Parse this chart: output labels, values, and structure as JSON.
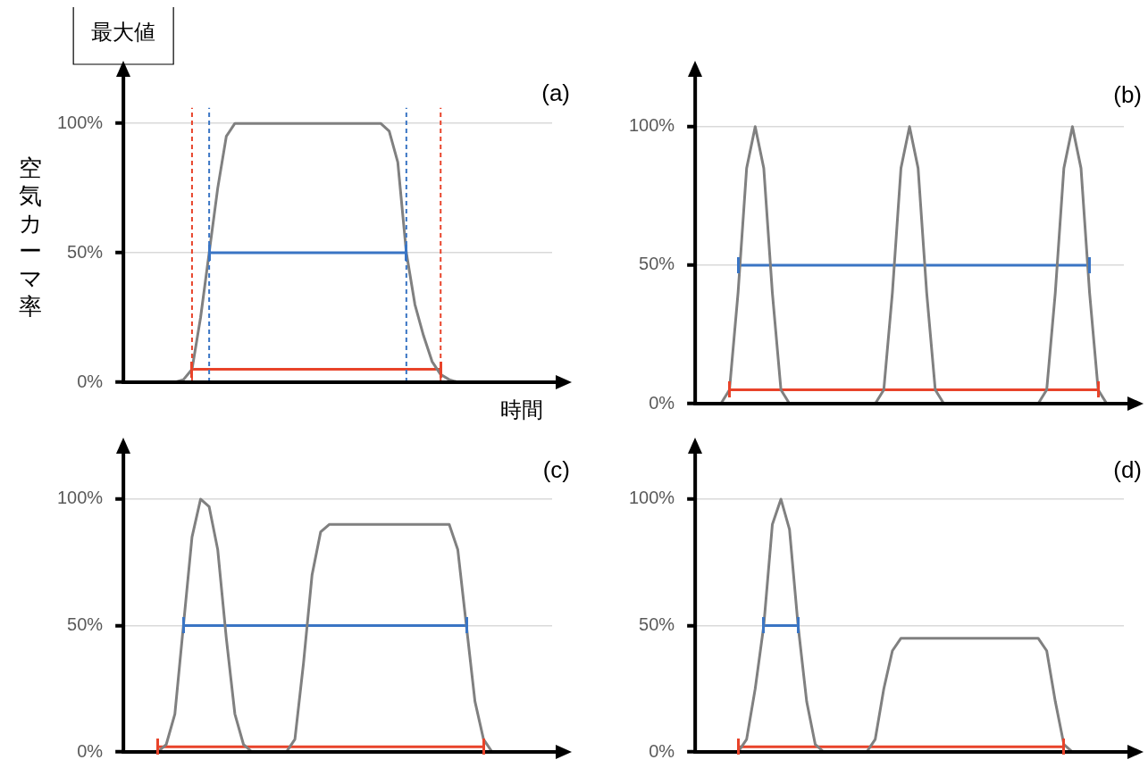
{
  "chart_data": [
    {
      "type": "line",
      "title": "最大値",
      "ylabel": "空気カーマ率",
      "xlabel": "時間",
      "annotations": [
        "(a)"
      ],
      "categories": [
        null,
        null,
        null,
        null,
        null,
        null,
        null,
        null,
        null,
        null,
        null,
        null,
        null,
        null,
        null,
        null,
        null,
        null,
        null,
        null,
        null,
        null,
        null,
        null,
        null,
        null,
        null,
        null,
        null,
        null,
        null,
        null,
        null,
        null,
        null,
        null,
        null,
        null,
        null,
        null,
        null,
        null,
        null,
        null,
        null,
        null,
        null,
        null,
        null,
        null,
        null
      ],
      "ylim": [
        0,
        118
      ],
      "yticks": [
        {
          "value": 0,
          "label": "0%"
        },
        {
          "value": 50,
          "label": "50%"
        },
        {
          "value": 100,
          "label": "100%"
        }
      ],
      "grid": "y",
      "tick_labels": "y",
      "series": [
        {
          "color": "#808080",
          "values": [
            0,
            0,
            0,
            0,
            0,
            0,
            0,
            1,
            5,
            25,
            50,
            75,
            95,
            100,
            100,
            100,
            100,
            100,
            100,
            100,
            100,
            100,
            100,
            100,
            100,
            100,
            100,
            100,
            100,
            100,
            100,
            97,
            85,
            50,
            30,
            18,
            8,
            3,
            1,
            0,
            0,
            0,
            0,
            0,
            0,
            0,
            0,
            0,
            0,
            0,
            0
          ]
        },
        {
          "color": "#3a75c4",
          "values": [
            null,
            null,
            null,
            null,
            null,
            null,
            null,
            null,
            null,
            null,
            50,
            50,
            50,
            50,
            50,
            50,
            50,
            50,
            50,
            50,
            50,
            50,
            50,
            50,
            50,
            50,
            50,
            50,
            50,
            50,
            50,
            50,
            50,
            50,
            null,
            null,
            null,
            null,
            null,
            null,
            null,
            null,
            null,
            null,
            null,
            null,
            null,
            null,
            null,
            null,
            null
          ]
        },
        {
          "color": "#e8432a",
          "values": [
            null,
            null,
            null,
            null,
            null,
            null,
            null,
            null,
            5,
            5,
            5,
            5,
            5,
            5,
            5,
            5,
            5,
            5,
            5,
            5,
            5,
            5,
            5,
            5,
            5,
            5,
            5,
            5,
            5,
            5,
            5,
            5,
            5,
            5,
            5,
            5,
            5,
            5,
            null,
            null,
            null,
            null,
            null,
            null,
            null,
            null,
            null,
            null,
            null,
            null,
            null
          ]
        }
      ]
    },
    {
      "type": "line",
      "annotations": [
        "(b)"
      ],
      "categories": [
        null,
        null,
        null,
        null,
        null,
        null,
        null,
        null,
        null,
        null,
        null,
        null,
        null,
        null,
        null,
        null,
        null,
        null,
        null,
        null,
        null,
        null,
        null,
        null,
        null,
        null,
        null,
        null,
        null,
        null,
        null,
        null,
        null,
        null,
        null,
        null,
        null,
        null,
        null,
        null,
        null,
        null,
        null,
        null,
        null,
        null,
        null,
        null,
        null,
        null,
        null
      ],
      "ylim": [
        0,
        118
      ],
      "yticks": [
        {
          "value": 0,
          "label": "0%"
        },
        {
          "value": 50,
          "label": "50%"
        },
        {
          "value": 100,
          "label": "100%"
        }
      ],
      "grid": "y",
      "tick_labels": "y",
      "series": [
        {
          "color": "#808080",
          "values": [
            0,
            0,
            0,
            0,
            5,
            40,
            85,
            100,
            85,
            40,
            5,
            0,
            0,
            0,
            0,
            0,
            0,
            0,
            0,
            0,
            0,
            0,
            5,
            40,
            85,
            100,
            85,
            40,
            5,
            0,
            0,
            0,
            0,
            0,
            0,
            0,
            0,
            0,
            0,
            0,
            0,
            5,
            40,
            85,
            100,
            85,
            40,
            5,
            0,
            0,
            0
          ]
        },
        {
          "color": "#3a75c4",
          "values": [
            null,
            null,
            null,
            null,
            null,
            50,
            50,
            50,
            50,
            50,
            50,
            50,
            50,
            50,
            50,
            50,
            50,
            50,
            50,
            50,
            50,
            50,
            50,
            50,
            50,
            50,
            50,
            50,
            50,
            50,
            50,
            50,
            50,
            50,
            50,
            50,
            50,
            50,
            50,
            50,
            50,
            50,
            50,
            50,
            50,
            50,
            50,
            null,
            null,
            null,
            null
          ]
        },
        {
          "color": "#e8432a",
          "values": [
            null,
            null,
            null,
            null,
            5,
            5,
            5,
            5,
            5,
            5,
            5,
            5,
            5,
            5,
            5,
            5,
            5,
            5,
            5,
            5,
            5,
            5,
            5,
            5,
            5,
            5,
            5,
            5,
            5,
            5,
            5,
            5,
            5,
            5,
            5,
            5,
            5,
            5,
            5,
            5,
            5,
            5,
            5,
            5,
            5,
            5,
            5,
            5,
            null,
            null,
            null
          ]
        }
      ]
    },
    {
      "type": "line",
      "annotations": [
        "(c)"
      ],
      "categories": [
        null,
        null,
        null,
        null,
        null,
        null,
        null,
        null,
        null,
        null,
        null,
        null,
        null,
        null,
        null,
        null,
        null,
        null,
        null,
        null,
        null,
        null,
        null,
        null,
        null,
        null,
        null,
        null,
        null,
        null,
        null,
        null,
        null,
        null,
        null,
        null,
        null,
        null,
        null,
        null,
        null,
        null,
        null,
        null,
        null,
        null,
        null,
        null,
        null,
        null,
        null
      ],
      "ylim": [
        0,
        118
      ],
      "yticks": [
        {
          "value": 0,
          "label": "0%"
        },
        {
          "value": 50,
          "label": "50%"
        },
        {
          "value": 100,
          "label": "100%"
        }
      ],
      "grid": "y",
      "tick_labels": "y",
      "series": [
        {
          "color": "#808080",
          "values": [
            0,
            0,
            0,
            0,
            0,
            3,
            15,
            50,
            85,
            100,
            97,
            80,
            45,
            15,
            3,
            0,
            0,
            0,
            0,
            0,
            5,
            35,
            70,
            87,
            90,
            90,
            90,
            90,
            90,
            90,
            90,
            90,
            90,
            90,
            90,
            90,
            90,
            90,
            90,
            80,
            50,
            20,
            5,
            0,
            0,
            0,
            0,
            0,
            0,
            0,
            0
          ]
        },
        {
          "color": "#3a75c4",
          "values": [
            null,
            null,
            null,
            null,
            null,
            null,
            null,
            50,
            50,
            50,
            50,
            50,
            50,
            50,
            50,
            50,
            50,
            50,
            50,
            50,
            50,
            50,
            50,
            50,
            50,
            50,
            50,
            50,
            50,
            50,
            50,
            50,
            50,
            50,
            50,
            50,
            50,
            50,
            50,
            50,
            50,
            null,
            null,
            null,
            null,
            null,
            null,
            null,
            null,
            null,
            null
          ]
        },
        {
          "color": "#e8432a",
          "values": [
            null,
            null,
            null,
            null,
            2,
            2,
            2,
            2,
            2,
            2,
            2,
            2,
            2,
            2,
            2,
            2,
            2,
            2,
            2,
            2,
            2,
            2,
            2,
            2,
            2,
            2,
            2,
            2,
            2,
            2,
            2,
            2,
            2,
            2,
            2,
            2,
            2,
            2,
            2,
            2,
            2,
            2,
            2,
            null,
            null,
            null,
            null,
            null,
            null,
            null,
            null
          ]
        }
      ]
    },
    {
      "type": "line",
      "annotations": [
        "(d)"
      ],
      "categories": [
        null,
        null,
        null,
        null,
        null,
        null,
        null,
        null,
        null,
        null,
        null,
        null,
        null,
        null,
        null,
        null,
        null,
        null,
        null,
        null,
        null,
        null,
        null,
        null,
        null,
        null,
        null,
        null,
        null,
        null,
        null,
        null,
        null,
        null,
        null,
        null,
        null,
        null,
        null,
        null,
        null,
        null,
        null,
        null,
        null,
        null,
        null,
        null,
        null,
        null,
        null
      ],
      "ylim": [
        0,
        118
      ],
      "yticks": [
        {
          "value": 0,
          "label": "0%"
        },
        {
          "value": 50,
          "label": "50%"
        },
        {
          "value": 100,
          "label": "100%"
        }
      ],
      "grid": "y",
      "tick_labels": "y",
      "series": [
        {
          "color": "#808080",
          "values": [
            0,
            0,
            0,
            0,
            0,
            0,
            5,
            25,
            50,
            90,
            100,
            88,
            50,
            20,
            3,
            0,
            0,
            0,
            0,
            0,
            0,
            5,
            25,
            40,
            45,
            45,
            45,
            45,
            45,
            45,
            45,
            45,
            45,
            45,
            45,
            45,
            45,
            45,
            45,
            45,
            45,
            40,
            20,
            3,
            0,
            0,
            0,
            0,
            0,
            0,
            0
          ]
        },
        {
          "color": "#3a75c4",
          "values": [
            null,
            null,
            null,
            null,
            null,
            null,
            null,
            null,
            50,
            50,
            50,
            50,
            50,
            null,
            null,
            null,
            null,
            null,
            null,
            null,
            null,
            null,
            null,
            null,
            null,
            null,
            null,
            null,
            null,
            null,
            null,
            null,
            null,
            null,
            null,
            null,
            null,
            null,
            null,
            null,
            null,
            null,
            null,
            null,
            null,
            null,
            null,
            null,
            null,
            null,
            null
          ]
        },
        {
          "color": "#e8432a",
          "values": [
            null,
            null,
            null,
            null,
            null,
            2,
            2,
            2,
            2,
            2,
            2,
            2,
            2,
            2,
            2,
            2,
            2,
            2,
            2,
            2,
            2,
            2,
            2,
            2,
            2,
            2,
            2,
            2,
            2,
            2,
            2,
            2,
            2,
            2,
            2,
            2,
            2,
            2,
            2,
            2,
            2,
            2,
            2,
            2,
            null,
            null,
            null,
            null,
            null,
            null,
            null
          ]
        }
      ]
    }
  ]
}
